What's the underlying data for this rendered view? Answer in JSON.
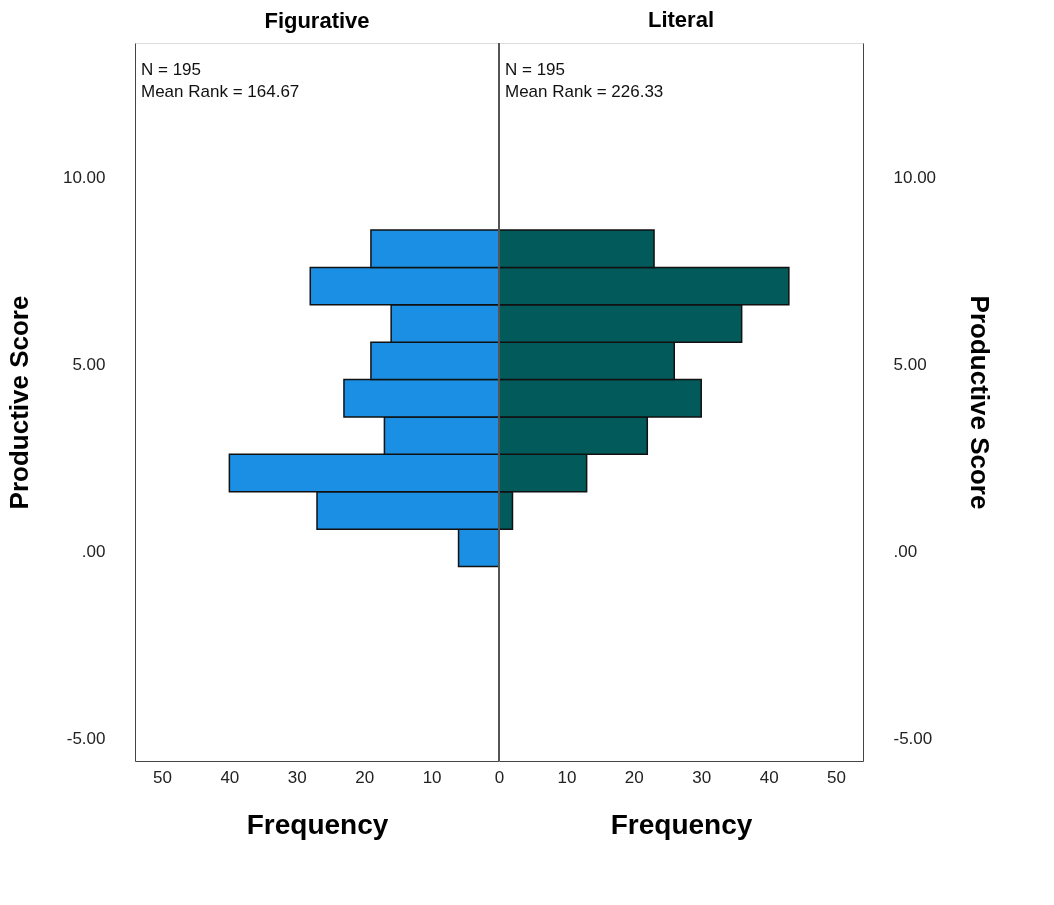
{
  "chart_data": [
    {
      "type": "histogram",
      "orientation": "horizontal",
      "title": "Figurative",
      "xlabel": "Frequency",
      "ylabel": "Productive Score",
      "annotations": [
        "N = 195",
        "Mean Rank = 164.67"
      ],
      "bins": [
        -0.4,
        0.6,
        1.6,
        2.6,
        3.6,
        4.6,
        5.6,
        6.6,
        7.6,
        8.6
      ],
      "values": [
        6,
        27,
        40,
        17,
        23,
        19,
        16,
        28,
        19
      ],
      "color": "#1a8fe3",
      "xlim": [
        54,
        0
      ],
      "xticks": [
        50,
        40,
        30,
        20,
        10,
        0
      ],
      "ylim": [
        -5.6,
        13.6
      ],
      "yticks": [
        {
          "value": -5,
          "label": "-5.00"
        },
        {
          "value": 0,
          "label": ".00"
        },
        {
          "value": 5,
          "label": "5.00"
        },
        {
          "value": 10,
          "label": "10.00"
        }
      ],
      "grid": false
    },
    {
      "type": "histogram",
      "orientation": "horizontal",
      "title": "Literal",
      "xlabel": "Frequency",
      "ylabel": "Productive Score",
      "annotations": [
        "N = 195",
        "Mean Rank = 226.33"
      ],
      "bins": [
        -0.4,
        0.6,
        1.6,
        2.6,
        3.6,
        4.6,
        5.6,
        6.6,
        7.6,
        8.6
      ],
      "values": [
        0,
        2,
        13,
        22,
        30,
        26,
        36,
        43,
        23
      ],
      "color": "#025a5a",
      "xlim": [
        0,
        54
      ],
      "xticks": [
        10,
        20,
        30,
        40,
        50
      ],
      "ylim": [
        -5.6,
        13.6
      ],
      "yticks": [
        {
          "value": -5,
          "label": "-5.00"
        },
        {
          "value": 0,
          "label": ".00"
        },
        {
          "value": 5,
          "label": "5.00"
        },
        {
          "value": 10,
          "label": "10.00"
        }
      ],
      "grid": false,
      "ref_lines": [
        {
          "axis": "x",
          "value": 0,
          "color": "#555555"
        }
      ]
    }
  ]
}
